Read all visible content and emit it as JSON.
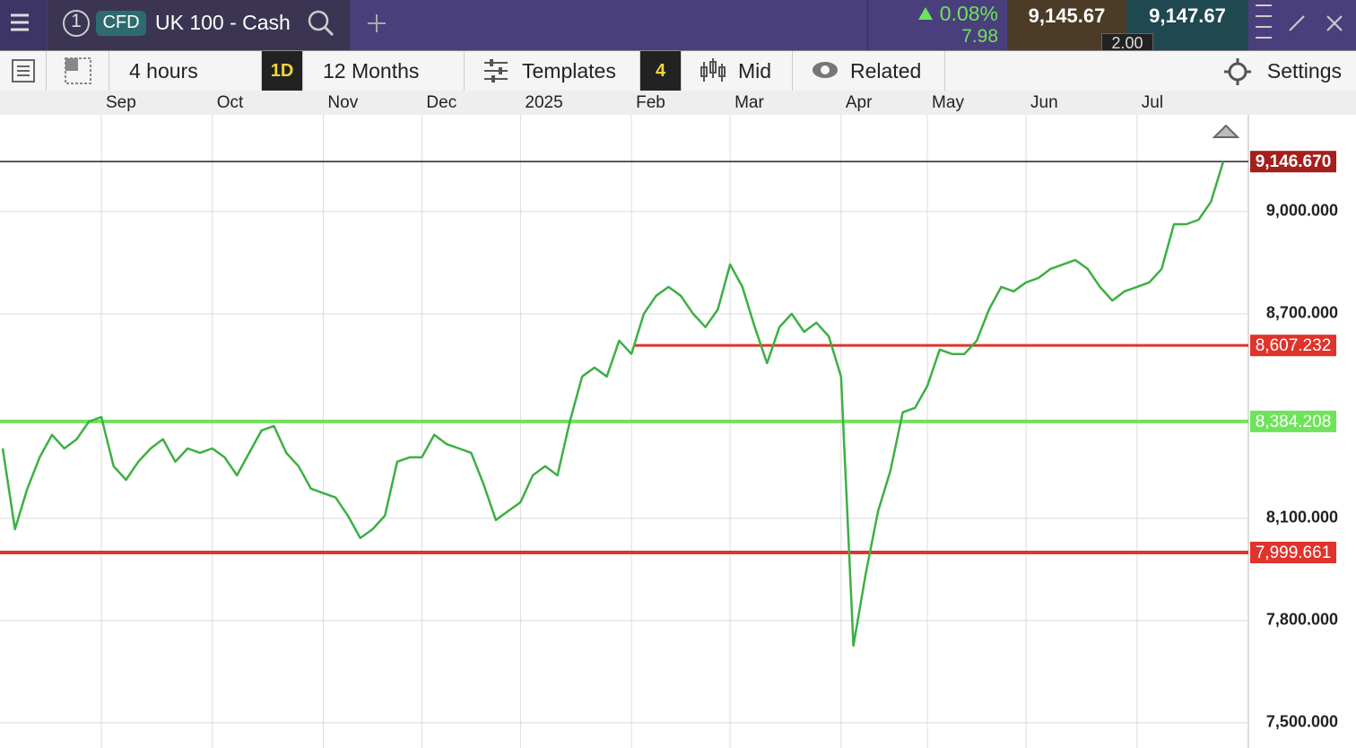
{
  "header": {
    "tab_number": "1",
    "instrument_type": "CFD",
    "instrument": "UK 100 - Cash",
    "change_percent": "0.08%",
    "change_points": "7.98",
    "bid": "9,145.67",
    "offer": "9,147.67",
    "spread": "2.00"
  },
  "toolbar": {
    "interval": "4 hours",
    "period_button": "1D",
    "range": "12 Months",
    "templates": "Templates",
    "templates_count": "4",
    "price_mode": "Mid",
    "related": "Related",
    "settings": "Settings"
  },
  "chart_data": {
    "type": "line",
    "categories": [
      null,
      null,
      null,
      null,
      null,
      null,
      null,
      null,
      "Sep",
      null,
      null,
      null,
      null,
      null,
      null,
      null,
      null,
      "Oct",
      null,
      null,
      null,
      null,
      null,
      null,
      null,
      null,
      "Nov",
      null,
      null,
      null,
      null,
      null,
      null,
      null,
      "Dec",
      null,
      null,
      null,
      null,
      null,
      null,
      null,
      "2025",
      null,
      null,
      null,
      null,
      null,
      null,
      null,
      null,
      "Feb",
      null,
      null,
      null,
      null,
      null,
      null,
      null,
      "Mar",
      null,
      null,
      null,
      null,
      null,
      null,
      null,
      null,
      "Apr",
      null,
      null,
      null,
      null,
      null,
      null,
      "May",
      null,
      null,
      null,
      null,
      null,
      null,
      null,
      "Jun",
      null,
      null,
      null,
      null,
      null,
      null,
      null,
      null,
      "Jul",
      null,
      null,
      null,
      null,
      null,
      null,
      null
    ],
    "series": [
      {
        "color": "#3cb043",
        "values": [
          8305,
          8068,
          8187,
          8279,
          8345,
          8305,
          8332,
          8384,
          8397,
          8253,
          8213,
          8266,
          8305,
          8332,
          8266,
          8305,
          8292,
          8305,
          8279,
          8226,
          8292,
          8358,
          8371,
          8292,
          8253,
          8187,
          8174,
          8161,
          8108,
          8042,
          8068,
          8108,
          8266,
          8279,
          8279,
          8345,
          8318,
          8305,
          8292,
          8200,
          8095,
          8121,
          8147,
          8226,
          8253,
          8226,
          8384,
          8516,
          8542,
          8516,
          8621,
          8582,
          8700,
          8753,
          8779,
          8753,
          8700,
          8661,
          8713,
          8845,
          8779,
          8661,
          8555,
          8661,
          8700,
          8647,
          8674,
          8634,
          8516,
          7726,
          7937,
          8121,
          8239,
          8411,
          8424,
          8489,
          8595,
          8582,
          8582,
          8621,
          8713,
          8779,
          8766,
          8792,
          8805,
          8832,
          8845,
          8858,
          8832,
          8779,
          8739,
          8766,
          8779,
          8792,
          8832,
          8963,
          8963,
          8976,
          9029,
          9147
        ]
      }
    ],
    "ylim": [
      7426,
      9284
    ],
    "yticks": [
      {
        "value": 7500,
        "label": "7,500.000"
      },
      {
        "value": 7800,
        "label": "7,800.000"
      },
      {
        "value": 8100,
        "label": "8,100.000"
      },
      {
        "value": 8700,
        "label": "8,700.000"
      },
      {
        "value": 9000,
        "label": "9,000.000"
      }
    ],
    "grid": true,
    "levels": [
      {
        "value": 9146.67,
        "label": "9,146.670",
        "color": "#222222",
        "label_color": "#a3201c"
      },
      {
        "value": 8607.232,
        "label": "8,607.232",
        "color": "#e0332b",
        "label_color": "#e0332b"
      },
      {
        "value": 8384.208,
        "label": "8,384.208",
        "color": "#6fe35a",
        "label_color": "#6fe35a"
      },
      {
        "value": 7999.661,
        "label": "7,999.661",
        "color": "#e0332b",
        "label_color": "#e0332b"
      }
    ]
  }
}
